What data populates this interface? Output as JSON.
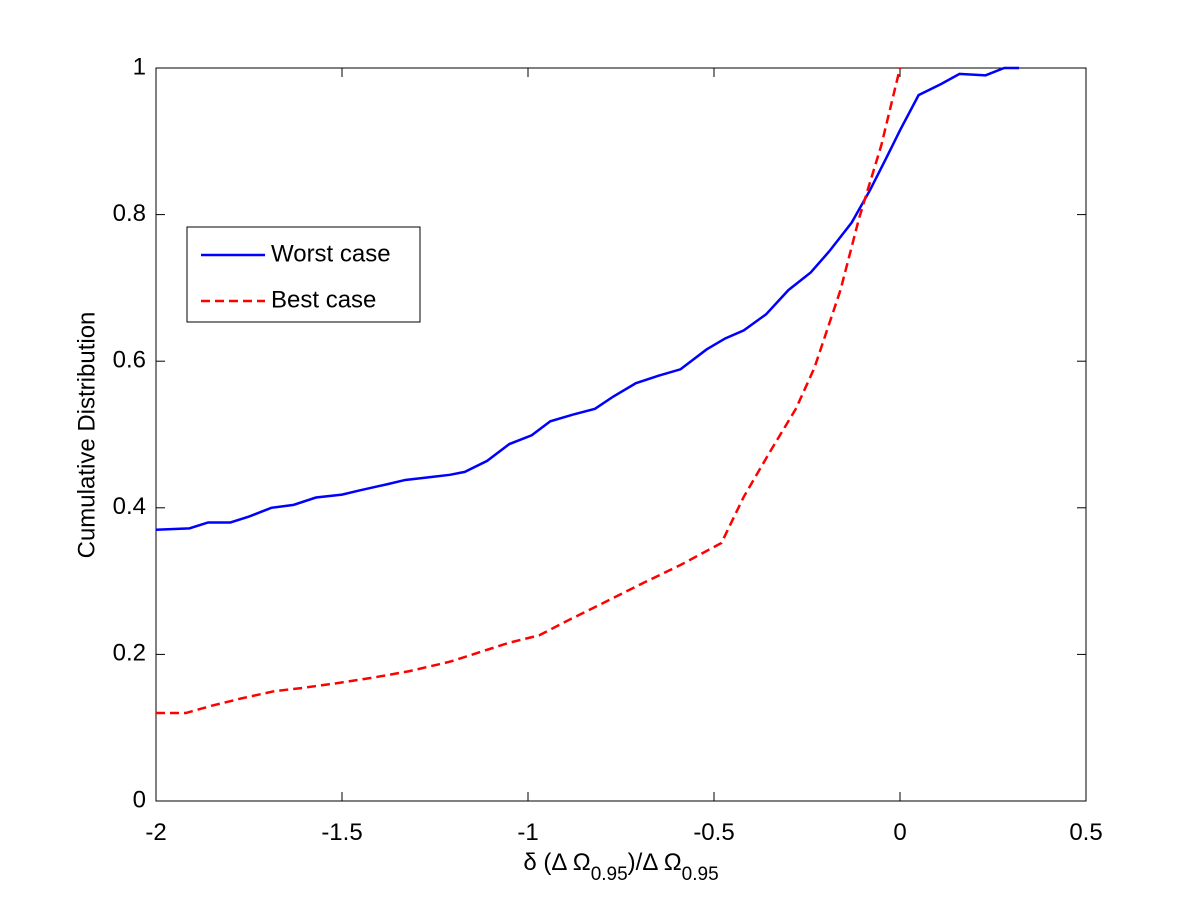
{
  "chart_data": {
    "type": "line",
    "xlabel": [
      "δ (Δ Ω",
      "0.95",
      ")/Δ Ω",
      "0.95"
    ],
    "ylabel": "Cumulative Distribution",
    "xlim": [
      -2,
      0.5
    ],
    "ylim": [
      0,
      1
    ],
    "xticks": [
      -2,
      -1.5,
      -1,
      -0.5,
      0,
      0.5
    ],
    "yticks": [
      0,
      0.2,
      0.4,
      0.6,
      0.8,
      1
    ],
    "grid": false,
    "legend": "upper left",
    "series": [
      {
        "name": "Worst case",
        "color": "#0000ff",
        "linestyle": "solid",
        "x": [
          -2,
          -1.91,
          -1.86,
          -1.8,
          -1.75,
          -1.69,
          -1.63,
          -1.57,
          -1.5,
          -1.45,
          -1.38,
          -1.33,
          -1.26,
          -1.21,
          -1.17,
          -1.11,
          -1.05,
          -0.99,
          -0.94,
          -0.88,
          -0.82,
          -0.77,
          -0.71,
          -0.65,
          -0.59,
          -0.52,
          -0.47,
          -0.42,
          -0.36,
          -0.3,
          -0.24,
          -0.19,
          -0.13,
          -0.08,
          -0.04,
          0,
          0.05,
          0.11,
          0.16,
          0.23,
          0.28,
          0.32
        ],
        "values": [
          0.37,
          0.372,
          0.38,
          0.38,
          0.388,
          0.4,
          0.404,
          0.414,
          0.418,
          0.424,
          0.432,
          0.438,
          0.442,
          0.445,
          0.449,
          0.464,
          0.487,
          0.499,
          0.518,
          0.527,
          0.535,
          0.552,
          0.57,
          0.58,
          0.589,
          0.616,
          0.631,
          0.642,
          0.664,
          0.697,
          0.721,
          0.75,
          0.789,
          0.834,
          0.874,
          0.915,
          0.963,
          0.978,
          0.992,
          0.99,
          1,
          1
        ]
      },
      {
        "name": "Best case",
        "color": "#ff0000",
        "linestyle": "dashed",
        "x": [
          -2,
          -1.92,
          -1.85,
          -1.77,
          -1.68,
          -1.61,
          -1.51,
          -1.42,
          -1.32,
          -1.21,
          -1.13,
          -1.05,
          -0.97,
          -0.89,
          -0.81,
          -0.7,
          -0.59,
          -0.48,
          -0.42,
          -0.35,
          -0.28,
          -0.23,
          -0.16,
          -0.11,
          -0.05,
          0
        ],
        "values": [
          0.12,
          0.12,
          0.13,
          0.14,
          0.15,
          0.154,
          0.161,
          0.168,
          0.177,
          0.19,
          0.203,
          0.216,
          0.226,
          0.247,
          0.267,
          0.295,
          0.322,
          0.352,
          0.415,
          0.476,
          0.535,
          0.591,
          0.697,
          0.795,
          0.895,
          1
        ]
      }
    ]
  }
}
